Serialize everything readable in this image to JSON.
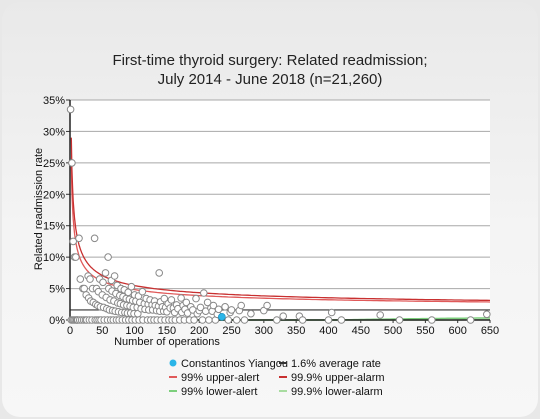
{
  "chart_data": {
    "type": "scatter",
    "title_lines": [
      "First-time thyroid surgery: Related readmission;",
      "July 2014 - June 2018 (n=21,260)"
    ],
    "xlabel": "Number of operations",
    "ylabel": "Related readmission rate",
    "xlim": [
      0,
      650
    ],
    "ylim": [
      0,
      35
    ],
    "x_ticks": [
      0,
      50,
      100,
      150,
      200,
      250,
      300,
      350,
      400,
      450,
      500,
      550,
      600,
      650
    ],
    "y_ticks": [
      0,
      5,
      10,
      15,
      20,
      25,
      30,
      35
    ],
    "y_tick_labels": [
      "0%",
      "5%",
      "10%",
      "15%",
      "20%",
      "25%",
      "30%",
      "35%"
    ],
    "grid": "horizontal",
    "average_rate": 1.6,
    "colors": {
      "highlight": "#2bb5e8",
      "average": "#333333",
      "alert_99": "#e05a5a",
      "alarm_999": "#c83030",
      "lower_alert_99": "#7ccf7c",
      "lower_alarm_999": "#a8dca0",
      "points": "#888888"
    },
    "legend": [
      {
        "label": "Constantinos Yiangou",
        "symbol": "dot",
        "color": "#2bb5e8"
      },
      {
        "label": "1.6% average rate",
        "symbol": "line",
        "color": "#333333"
      },
      {
        "label": "99% upper-alert",
        "symbol": "line",
        "color": "#e05a5a"
      },
      {
        "label": "99.9% upper-alarm",
        "symbol": "line",
        "color": "#c83030"
      },
      {
        "label": "99% lower-alert",
        "symbol": "line",
        "color": "#7ccf7c"
      },
      {
        "label": "99.9% lower-alarm",
        "symbol": "line",
        "color": "#a8dca0"
      }
    ],
    "highlight_point": {
      "name": "Constantinos Yiangou",
      "x": 235,
      "y": 0.5
    },
    "points": [
      [
        1,
        33.5
      ],
      [
        2,
        0
      ],
      [
        3,
        25
      ],
      [
        4,
        0
      ],
      [
        5,
        12.5
      ],
      [
        6,
        0
      ],
      [
        7,
        10
      ],
      [
        8,
        0
      ],
      [
        9,
        10
      ],
      [
        10,
        0
      ],
      [
        11,
        0
      ],
      [
        12,
        0
      ],
      [
        14,
        13
      ],
      [
        15,
        0
      ],
      [
        16,
        6.5
      ],
      [
        18,
        0
      ],
      [
        20,
        5
      ],
      [
        21,
        0
      ],
      [
        22,
        5
      ],
      [
        24,
        0
      ],
      [
        25,
        4
      ],
      [
        26,
        0
      ],
      [
        28,
        7
      ],
      [
        29,
        3.5
      ],
      [
        30,
        0
      ],
      [
        31,
        6.5
      ],
      [
        32,
        3
      ],
      [
        34,
        0
      ],
      [
        35,
        5
      ],
      [
        36,
        2.8
      ],
      [
        38,
        13
      ],
      [
        39,
        0
      ],
      [
        40,
        2.5
      ],
      [
        41,
        5
      ],
      [
        42,
        0
      ],
      [
        43,
        2.3
      ],
      [
        44,
        4.5
      ],
      [
        45,
        0
      ],
      [
        46,
        6.5
      ],
      [
        47,
        2.1
      ],
      [
        48,
        0
      ],
      [
        50,
        4
      ],
      [
        51,
        6
      ],
      [
        52,
        2
      ],
      [
        53,
        0
      ],
      [
        55,
        7.5
      ],
      [
        56,
        3.6
      ],
      [
        57,
        1.8
      ],
      [
        58,
        0
      ],
      [
        59,
        10
      ],
      [
        60,
        5
      ],
      [
        61,
        1.6
      ],
      [
        62,
        3.2
      ],
      [
        63,
        0
      ],
      [
        64,
        6.3
      ],
      [
        65,
        4.6
      ],
      [
        66,
        1.5
      ],
      [
        67,
        0
      ],
      [
        68,
        3
      ],
      [
        69,
        7
      ],
      [
        70,
        1.4
      ],
      [
        71,
        4.2
      ],
      [
        72,
        0
      ],
      [
        73,
        5.5
      ],
      [
        74,
        2.7
      ],
      [
        75,
        1.3
      ],
      [
        76,
        0
      ],
      [
        77,
        3.9
      ],
      [
        78,
        2.6
      ],
      [
        79,
        5
      ],
      [
        80,
        1.2
      ],
      [
        81,
        0
      ],
      [
        82,
        3.7
      ],
      [
        83,
        2.4
      ],
      [
        84,
        4.8
      ],
      [
        85,
        1.2
      ],
      [
        86,
        0
      ],
      [
        87,
        3.4
      ],
      [
        88,
        2.3
      ],
      [
        89,
        1.1
      ],
      [
        90,
        4.4
      ],
      [
        91,
        0
      ],
      [
        92,
        3.3
      ],
      [
        93,
        2.2
      ],
      [
        94,
        1.1
      ],
      [
        95,
        5.3
      ],
      [
        96,
        0
      ],
      [
        97,
        3.1
      ],
      [
        98,
        2
      ],
      [
        99,
        1
      ],
      [
        100,
        4
      ],
      [
        101,
        0
      ],
      [
        102,
        3
      ],
      [
        104,
        2
      ],
      [
        105,
        1
      ],
      [
        106,
        3.8
      ],
      [
        107,
        0
      ],
      [
        108,
        2.8
      ],
      [
        110,
        1.8
      ],
      [
        112,
        4.5
      ],
      [
        113,
        0
      ],
      [
        115,
        2.6
      ],
      [
        116,
        1.7
      ],
      [
        118,
        3.4
      ],
      [
        120,
        0
      ],
      [
        121,
        2.5
      ],
      [
        122,
        1.6
      ],
      [
        124,
        3.2
      ],
      [
        125,
        0
      ],
      [
        127,
        2.4
      ],
      [
        128,
        1.6
      ],
      [
        130,
        0
      ],
      [
        131,
        3
      ],
      [
        132,
        2.3
      ],
      [
        134,
        1.5
      ],
      [
        135,
        0
      ],
      [
        137,
        2.2
      ],
      [
        138,
        7.5
      ],
      [
        139,
        1.4
      ],
      [
        140,
        2.9
      ],
      [
        141,
        0
      ],
      [
        143,
        2.1
      ],
      [
        145,
        1.4
      ],
      [
        146,
        3.4
      ],
      [
        147,
        0
      ],
      [
        148,
        2
      ],
      [
        150,
        1.3
      ],
      [
        152,
        2.6
      ],
      [
        153,
        0
      ],
      [
        155,
        1.9
      ],
      [
        157,
        3.2
      ],
      [
        158,
        0
      ],
      [
        160,
        1.9
      ],
      [
        162,
        1.2
      ],
      [
        163,
        0
      ],
      [
        165,
        2.4
      ],
      [
        167,
        1.8
      ],
      [
        170,
        0
      ],
      [
        172,
        3.5
      ],
      [
        173,
        1.2
      ],
      [
        175,
        2.3
      ],
      [
        177,
        0
      ],
      [
        178,
        1.7
      ],
      [
        180,
        2.8
      ],
      [
        182,
        1.1
      ],
      [
        185,
        0
      ],
      [
        187,
        2.1
      ],
      [
        190,
        1.6
      ],
      [
        192,
        0
      ],
      [
        195,
        3.4
      ],
      [
        197,
        1
      ],
      [
        200,
        1.5
      ],
      [
        202,
        2
      ],
      [
        205,
        0
      ],
      [
        207,
        4.3
      ],
      [
        210,
        1.4
      ],
      [
        213,
        2.8
      ],
      [
        215,
        0
      ],
      [
        218,
        1.9
      ],
      [
        220,
        1.4
      ],
      [
        222,
        2.3
      ],
      [
        225,
        0
      ],
      [
        228,
        0.9
      ],
      [
        230,
        1.7
      ],
      [
        240,
        2.1
      ],
      [
        245,
        0
      ],
      [
        248,
        1.2
      ],
      [
        250,
        1.6
      ],
      [
        258,
        0
      ],
      [
        262,
        1.5
      ],
      [
        265,
        2.3
      ],
      [
        270,
        0
      ],
      [
        280,
        1
      ],
      [
        300,
        1.5
      ],
      [
        305,
        2.3
      ],
      [
        320,
        0
      ],
      [
        330,
        0.6
      ],
      [
        355,
        0.6
      ],
      [
        360,
        0
      ],
      [
        400,
        0
      ],
      [
        405,
        1.2
      ],
      [
        420,
        0
      ],
      [
        480,
        0.8
      ],
      [
        510,
        0
      ],
      [
        560,
        0
      ],
      [
        620,
        0
      ],
      [
        645,
        0.9
      ]
    ]
  }
}
